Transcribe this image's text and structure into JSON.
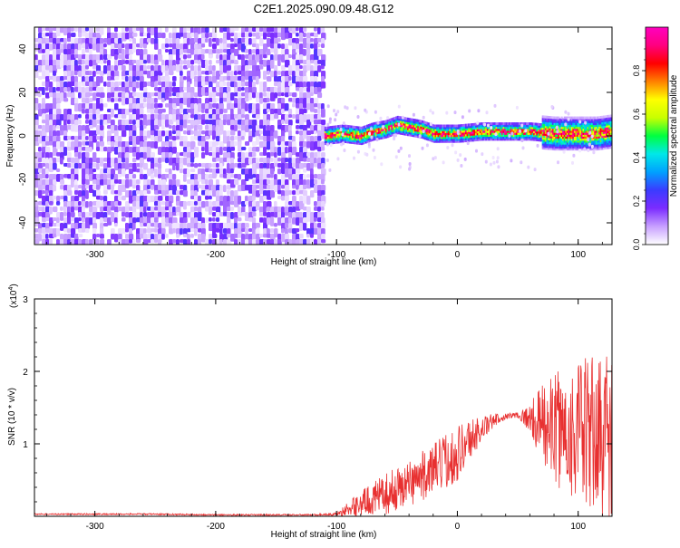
{
  "page": {
    "title": "C2E1.2025.090.09.48.G12"
  },
  "chart_data": [
    {
      "type": "heatmap",
      "title": "C2E1.2025.090.09.48.G12",
      "xlabel": "Height of straight line (km)",
      "ylabel": "Frequency (Hz)",
      "xlim": [
        -350,
        128
      ],
      "ylim": [
        -50,
        50
      ],
      "xticks": [
        -300,
        -200,
        -100,
        0,
        100
      ],
      "xtick_labels": [
        "-300",
        "-200",
        "-100",
        "0",
        "100"
      ],
      "yticks": [
        -40,
        -20,
        0,
        20,
        40
      ],
      "ytick_labels": [
        "-40",
        "-20",
        "0",
        "20",
        "40"
      ],
      "noise_region_x": [
        -350,
        -110
      ],
      "signal_region_x": [
        -110,
        128
      ],
      "signal_track": {
        "x": [
          -110,
          -95,
          -80,
          -70,
          -60,
          -50,
          -40,
          -30,
          -20,
          -10,
          0,
          20,
          40,
          60,
          80,
          100,
          115,
          128
        ],
        "frequency": [
          0,
          1,
          0,
          2,
          3,
          5,
          4,
          3,
          1,
          1,
          1,
          2,
          2,
          2,
          1,
          1,
          1,
          2
        ]
      },
      "colorbar": {
        "label": "Normalized spectral amplitude",
        "range": [
          0,
          1
        ],
        "ticks": [
          0.0,
          0.2,
          0.4,
          0.6,
          0.8
        ],
        "tick_labels": [
          "0.0",
          "0.2",
          "0.4",
          "0.6",
          "0.8"
        ],
        "colors": [
          "#ffffff",
          "#c8a0ff",
          "#7b2cff",
          "#3b3bff",
          "#00a0ff",
          "#00e8e8",
          "#00ff40",
          "#c8ff00",
          "#ffff00",
          "#ff8000",
          "#ff0000",
          "#ff0080",
          "#ff00c0"
        ]
      }
    },
    {
      "type": "line",
      "xlabel": "Height of straight line (km)",
      "ylabel": "SNR (10 * v/v)",
      "y_multiplier": "(x10",
      "y_multiplier_exp": "4",
      "y_multiplier_close": ")",
      "xlim": [
        -350,
        128
      ],
      "ylim": [
        0,
        3
      ],
      "xticks": [
        -300,
        -200,
        -100,
        0,
        100
      ],
      "xtick_labels": [
        "-300",
        "-200",
        "-100",
        "0",
        "100"
      ],
      "yticks": [
        1,
        2,
        3
      ],
      "ytick_labels": [
        "1",
        "2",
        "3"
      ],
      "color": "#e83030",
      "series": [
        {
          "x": [
            -350,
            -300,
            -250,
            -200,
            -150,
            -120,
            -100,
            -90,
            -80,
            -70,
            -60,
            -50,
            -40,
            -30,
            -20,
            -10,
            0,
            10,
            20,
            30,
            40,
            50,
            60,
            70,
            80,
            90,
            100,
            110,
            120,
            128
          ],
          "y": [
            0.03,
            0.03,
            0.03,
            0.02,
            0.02,
            0.02,
            0.03,
            0.1,
            0.18,
            0.24,
            0.3,
            0.38,
            0.46,
            0.55,
            0.64,
            0.76,
            0.88,
            1.06,
            1.2,
            1.32,
            1.38,
            1.4,
            1.35,
            1.28,
            1.22,
            1.18,
            1.15,
            1.13,
            1.12,
            1.12
          ],
          "spread": [
            0.01,
            0.01,
            0.01,
            0.01,
            0.01,
            0.01,
            0.02,
            0.1,
            0.18,
            0.22,
            0.28,
            0.3,
            0.32,
            0.34,
            0.36,
            0.38,
            0.4,
            0.3,
            0.18,
            0.1,
            0.04,
            0.04,
            0.2,
            0.55,
            0.75,
            0.9,
            1.0,
            1.1,
            1.2,
            1.2
          ]
        }
      ]
    }
  ]
}
